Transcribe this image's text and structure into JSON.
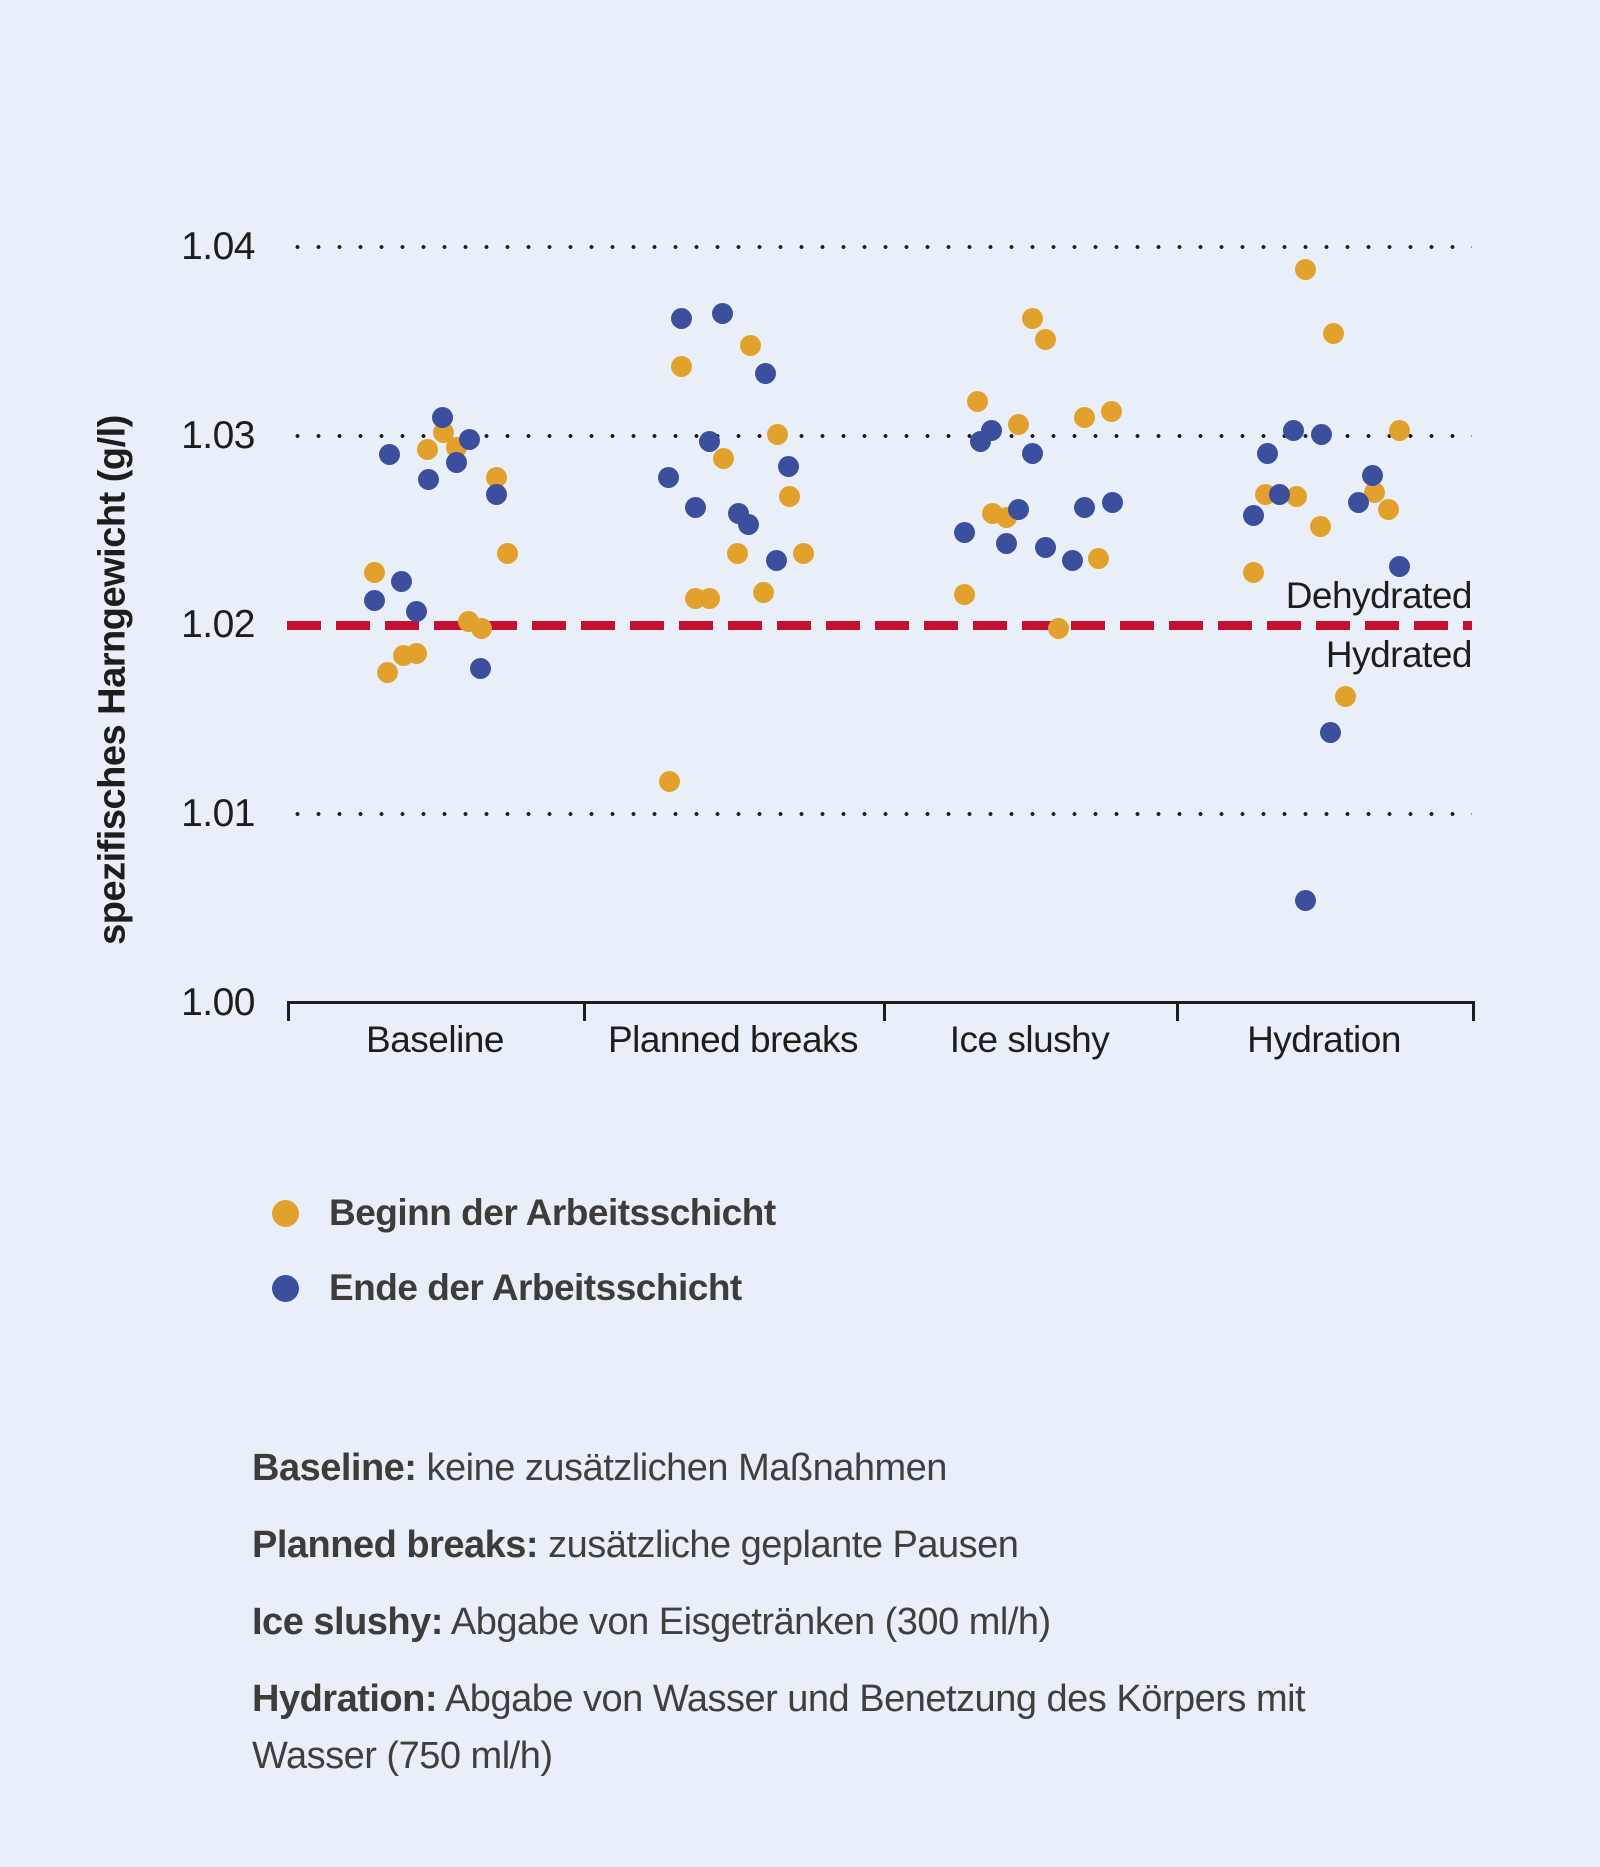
{
  "chart_data": {
    "type": "scatter",
    "title": "",
    "ylabel": "spezifisches Harngewicht (g/l)",
    "xlabel": "",
    "ylim": [
      1.0,
      1.04
    ],
    "yticks": [
      1.0,
      1.01,
      1.02,
      1.03,
      1.04
    ],
    "ytick_labels": [
      "1.00",
      "1.01",
      "1.02",
      "1.03",
      "1.04"
    ],
    "dotted_gridlines_at": [
      1.01,
      1.03,
      1.04
    ],
    "grid": "dotted-horizontal",
    "legend_position": "below-left",
    "categories": [
      "Baseline",
      "Planned breaks",
      "Ice slushy",
      "Hydration"
    ],
    "threshold": {
      "value": 1.02,
      "label_above": "Dehydrated",
      "label_below": "Hydrated",
      "color": "#c6102f"
    },
    "point_format": "[category_index, value_g_per_l, x_offset_px_from_category_center]",
    "series": [
      {
        "name": "Beginn der Arbeitsschicht",
        "color": "#e2a12d",
        "points": [
          [
            0,
            1.0302,
            8
          ],
          [
            0,
            1.0293,
            -8
          ],
          [
            0,
            1.0294,
            21
          ],
          [
            0,
            1.0278,
            61
          ],
          [
            0,
            1.0238,
            72
          ],
          [
            0,
            1.0228,
            -61
          ],
          [
            0,
            1.0202,
            33
          ],
          [
            0,
            1.0198,
            46
          ],
          [
            0,
            1.0184,
            -32
          ],
          [
            0,
            1.0185,
            -19
          ],
          [
            0,
            1.0175,
            -48
          ],
          [
            1,
            1.0348,
            17
          ],
          [
            1,
            1.0337,
            -52
          ],
          [
            1,
            1.0301,
            44
          ],
          [
            1,
            1.0288,
            -10
          ],
          [
            1,
            1.0268,
            56
          ],
          [
            1,
            1.0238,
            4
          ],
          [
            1,
            1.0238,
            70
          ],
          [
            1,
            1.0214,
            -38
          ],
          [
            1,
            1.0214,
            -24
          ],
          [
            1,
            1.0217,
            30
          ],
          [
            1,
            1.0117,
            -64
          ],
          [
            2,
            1.0362,
            3
          ],
          [
            2,
            1.0351,
            16
          ],
          [
            2,
            1.0318,
            -52
          ],
          [
            2,
            1.0306,
            -11
          ],
          [
            2,
            1.031,
            55
          ],
          [
            2,
            1.0313,
            82
          ],
          [
            2,
            1.0259,
            -37
          ],
          [
            2,
            1.0257,
            -23
          ],
          [
            2,
            1.0235,
            69
          ],
          [
            2,
            1.0216,
            -65
          ],
          [
            2,
            1.0198,
            29
          ],
          [
            3,
            1.0388,
            -19
          ],
          [
            3,
            1.0354,
            9
          ],
          [
            3,
            1.0303,
            75
          ],
          [
            3,
            1.0269,
            -59
          ],
          [
            3,
            1.0268,
            -28
          ],
          [
            3,
            1.027,
            50
          ],
          [
            3,
            1.0261,
            64
          ],
          [
            3,
            1.0252,
            -4
          ],
          [
            3,
            1.0228,
            -71
          ],
          [
            3,
            1.0162,
            21
          ]
        ]
      },
      {
        "name": "Ende der Arbeitsschicht",
        "color": "#3b4f9d",
        "points": [
          [
            0,
            1.031,
            7
          ],
          [
            0,
            1.0298,
            34
          ],
          [
            0,
            1.029,
            -46
          ],
          [
            0,
            1.0286,
            21
          ],
          [
            0,
            1.0277,
            -7
          ],
          [
            0,
            1.0269,
            61
          ],
          [
            0,
            1.0223,
            -34
          ],
          [
            0,
            1.0213,
            -61
          ],
          [
            0,
            1.0207,
            -19
          ],
          [
            0,
            1.0177,
            45
          ],
          [
            1,
            1.0362,
            -52
          ],
          [
            1,
            1.0365,
            -11
          ],
          [
            1,
            1.0333,
            32
          ],
          [
            1,
            1.0297,
            -24
          ],
          [
            1,
            1.0284,
            55
          ],
          [
            1,
            1.0278,
            -65
          ],
          [
            1,
            1.0262,
            -38
          ],
          [
            1,
            1.0259,
            5
          ],
          [
            1,
            1.0253,
            15
          ],
          [
            1,
            1.0234,
            43
          ],
          [
            2,
            1.0303,
            -38
          ],
          [
            2,
            1.0297,
            -49
          ],
          [
            2,
            1.0291,
            3
          ],
          [
            2,
            1.0261,
            -11
          ],
          [
            2,
            1.0262,
            55
          ],
          [
            2,
            1.0265,
            83
          ],
          [
            2,
            1.0249,
            -65
          ],
          [
            2,
            1.0243,
            -23
          ],
          [
            2,
            1.0241,
            16
          ],
          [
            2,
            1.0234,
            43
          ],
          [
            3,
            1.0303,
            -31
          ],
          [
            3,
            1.0301,
            -3
          ],
          [
            3,
            1.0291,
            -57
          ],
          [
            3,
            1.0279,
            48
          ],
          [
            3,
            1.0269,
            -45
          ],
          [
            3,
            1.0265,
            34
          ],
          [
            3,
            1.0258,
            -71
          ],
          [
            3,
            1.0231,
            75
          ],
          [
            3,
            1.0143,
            6
          ],
          [
            3,
            1.0054,
            -19
          ]
        ]
      }
    ],
    "footnotes": [
      {
        "term": "Baseline:",
        "text": "keine zusätzlichen Maßnahmen"
      },
      {
        "term": "Planned breaks:",
        "text": "zusätzliche geplante Pausen"
      },
      {
        "term": "Ice slushy:",
        "text": "Abgabe von Eisgetränken (300 ml/h)"
      },
      {
        "term": "Hydration:",
        "text": "Abgabe von Wasser und Benetzung des Körpers mit Wasser (750 ml/h)"
      }
    ],
    "colors": {
      "background": "#e9eff8",
      "axis": "#1d1d1b",
      "threshold_red": "#c6102f",
      "begin_orange": "#e2a12d",
      "end_blue": "#3b4f9d",
      "text_gray": "#3c3c3b"
    }
  }
}
